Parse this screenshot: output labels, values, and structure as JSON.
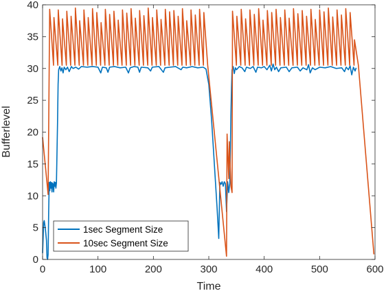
{
  "chart_data": {
    "type": "line",
    "title": "",
    "xlabel": "Time",
    "ylabel": "Bufferlevel",
    "xlim": [
      0,
      600
    ],
    "ylim": [
      0,
      40
    ],
    "xticks": [
      0,
      100,
      200,
      300,
      400,
      500,
      600
    ],
    "yticks": [
      0,
      5,
      10,
      15,
      20,
      25,
      30,
      35,
      40
    ],
    "grid": false,
    "legend_position": "bottom-left",
    "series": [
      {
        "name": "1sec Segment Size",
        "color": "#0072BD",
        "points": [
          [
            0,
            1
          ],
          [
            2,
            5.8
          ],
          [
            3,
            6.1
          ],
          [
            5,
            4.8
          ],
          [
            7,
            3.0
          ],
          [
            8,
            0.3
          ],
          [
            9,
            0.0
          ],
          [
            10,
            0.8
          ],
          [
            11,
            7.5
          ],
          [
            12,
            12.1
          ],
          [
            13,
            10.8
          ],
          [
            14,
            12.2
          ],
          [
            15,
            11.2
          ],
          [
            16,
            12.1
          ],
          [
            17,
            10.6
          ],
          [
            18,
            12.0
          ],
          [
            19,
            11.8
          ],
          [
            20,
            10.6
          ],
          [
            21,
            12.2
          ],
          [
            22,
            11.5
          ],
          [
            23,
            12.1
          ],
          [
            24,
            11.2
          ],
          [
            25,
            12.0
          ],
          [
            27,
            21.5
          ],
          [
            28,
            27.5
          ],
          [
            29,
            29.8
          ],
          [
            31,
            30.3
          ],
          [
            33,
            29.6
          ],
          [
            35,
            30.1
          ],
          [
            37,
            29.3
          ],
          [
            39,
            30.2
          ],
          [
            42,
            29.8
          ],
          [
            45,
            30.2
          ],
          [
            48,
            29.5
          ],
          [
            52,
            30.3
          ],
          [
            55,
            30.0
          ],
          [
            60,
            30.2
          ],
          [
            65,
            29.9
          ],
          [
            70,
            30.3
          ],
          [
            80,
            30.2
          ],
          [
            90,
            30.3
          ],
          [
            100,
            30.2
          ],
          [
            105,
            29.3
          ],
          [
            108,
            30.2
          ],
          [
            115,
            30.1
          ],
          [
            118,
            29.4
          ],
          [
            121,
            30.2
          ],
          [
            130,
            30.3
          ],
          [
            140,
            30.1
          ],
          [
            150,
            30.2
          ],
          [
            155,
            29.3
          ],
          [
            158,
            30.1
          ],
          [
            165,
            30.3
          ],
          [
            172,
            30.2
          ],
          [
            175,
            29.4
          ],
          [
            178,
            30.2
          ],
          [
            190,
            30.1
          ],
          [
            195,
            29.6
          ],
          [
            198,
            30.2
          ],
          [
            210,
            30.3
          ],
          [
            218,
            29.4
          ],
          [
            221,
            30.1
          ],
          [
            230,
            30.2
          ],
          [
            240,
            30.3
          ],
          [
            250,
            29.8
          ],
          [
            253,
            30.2
          ],
          [
            260,
            30.1
          ],
          [
            270,
            30.3
          ],
          [
            280,
            30.1
          ],
          [
            290,
            30.2
          ],
          [
            295,
            29.9
          ],
          [
            300,
            27.5
          ],
          [
            305,
            22
          ],
          [
            310,
            15
          ],
          [
            315,
            8
          ],
          [
            318,
            3.3
          ],
          [
            320,
            12.1
          ],
          [
            322,
            11.8
          ],
          [
            324,
            12.2
          ],
          [
            326,
            11.5
          ],
          [
            328,
            12.2
          ],
          [
            330,
            11.9
          ],
          [
            332,
            7.5
          ],
          [
            334,
            12.2
          ],
          [
            336,
            10.5
          ],
          [
            338,
            12.0
          ],
          [
            340,
            23
          ],
          [
            341,
            27
          ],
          [
            342,
            29.8
          ],
          [
            344,
            30.3
          ],
          [
            346,
            29.2
          ],
          [
            348,
            30.1
          ],
          [
            350,
            29.8
          ],
          [
            355,
            30.3
          ],
          [
            360,
            30.1
          ],
          [
            365,
            29.5
          ],
          [
            368,
            30.2
          ],
          [
            375,
            30.0
          ],
          [
            380,
            30.3
          ],
          [
            385,
            29.4
          ],
          [
            388,
            30.2
          ],
          [
            395,
            30.1
          ],
          [
            400,
            30.3
          ],
          [
            405,
            29.8
          ],
          [
            410,
            30.5
          ],
          [
            413,
            29.6
          ],
          [
            416,
            30.7
          ],
          [
            419,
            29.8
          ],
          [
            422,
            30.2
          ],
          [
            426,
            29.5
          ],
          [
            430,
            30.1
          ],
          [
            440,
            30.2
          ],
          [
            445,
            29.5
          ],
          [
            450,
            30.1
          ],
          [
            460,
            30.2
          ],
          [
            465,
            29.6
          ],
          [
            470,
            30.1
          ],
          [
            477,
            29.8
          ],
          [
            480,
            30.6
          ],
          [
            483,
            29.3
          ],
          [
            487,
            30.1
          ],
          [
            492,
            29.8
          ],
          [
            500,
            30.2
          ],
          [
            510,
            30.1
          ],
          [
            520,
            30.3
          ],
          [
            530,
            30.0
          ],
          [
            540,
            30.1
          ],
          [
            545,
            29.5
          ],
          [
            548,
            30.2
          ],
          [
            552,
            29.8
          ],
          [
            555,
            30.4
          ],
          [
            558,
            29.0
          ],
          [
            561,
            30.2
          ],
          [
            564,
            29.6
          ],
          [
            566,
            30.1
          ]
        ]
      },
      {
        "name": "10sec Segment Size",
        "color": "#D95319",
        "start": [
          0,
          19.2
        ],
        "segments": [
          {
            "from": 0,
            "to": 10,
            "peaks": [],
            "end": 10.2
          },
          {
            "from": 12,
            "to": 298,
            "low": 30.5,
            "peaks": [
              39.3,
              38.0,
              39.2,
              37.8,
              39.0,
              38.2,
              39.5,
              37.5,
              39.2,
              38.0,
              39.4,
              38.8,
              37.2,
              39.3,
              38.5,
              39.0,
              37.6,
              39.2,
              38.7,
              39.4,
              37.9,
              39.1,
              38.3,
              39.5,
              38.0,
              39.2,
              37.7,
              39.3,
              38.9,
              39.1,
              38.2,
              39.4,
              37.5,
              39.2,
              38.4,
              39.3,
              38.8
            ]
          },
          {
            "from": 298,
            "to": 332,
            "peaks": [],
            "end": 0.5
          },
          {
            "from": 332,
            "to": 342,
            "peaks": [
              19.7,
              18.5
            ],
            "end": 10.5
          },
          {
            "from": 342,
            "to": 570,
            "low": 30.5,
            "peaks": [
              39.0,
              38.2,
              39.3,
              37.8,
              39.2,
              38.5,
              39.4,
              37.6,
              39.1,
              38.8,
              39.3,
              38.0,
              39.2,
              37.9,
              39.4,
              38.6,
              39.1,
              38.2,
              39.3,
              37.7,
              39.2,
              38.9,
              39.5,
              38.1,
              39.2,
              38.4,
              39.4,
              38.8,
              34.5
            ]
          },
          {
            "from": 570,
            "to": 598,
            "peaks": [],
            "end": 0.8
          }
        ]
      }
    ]
  }
}
